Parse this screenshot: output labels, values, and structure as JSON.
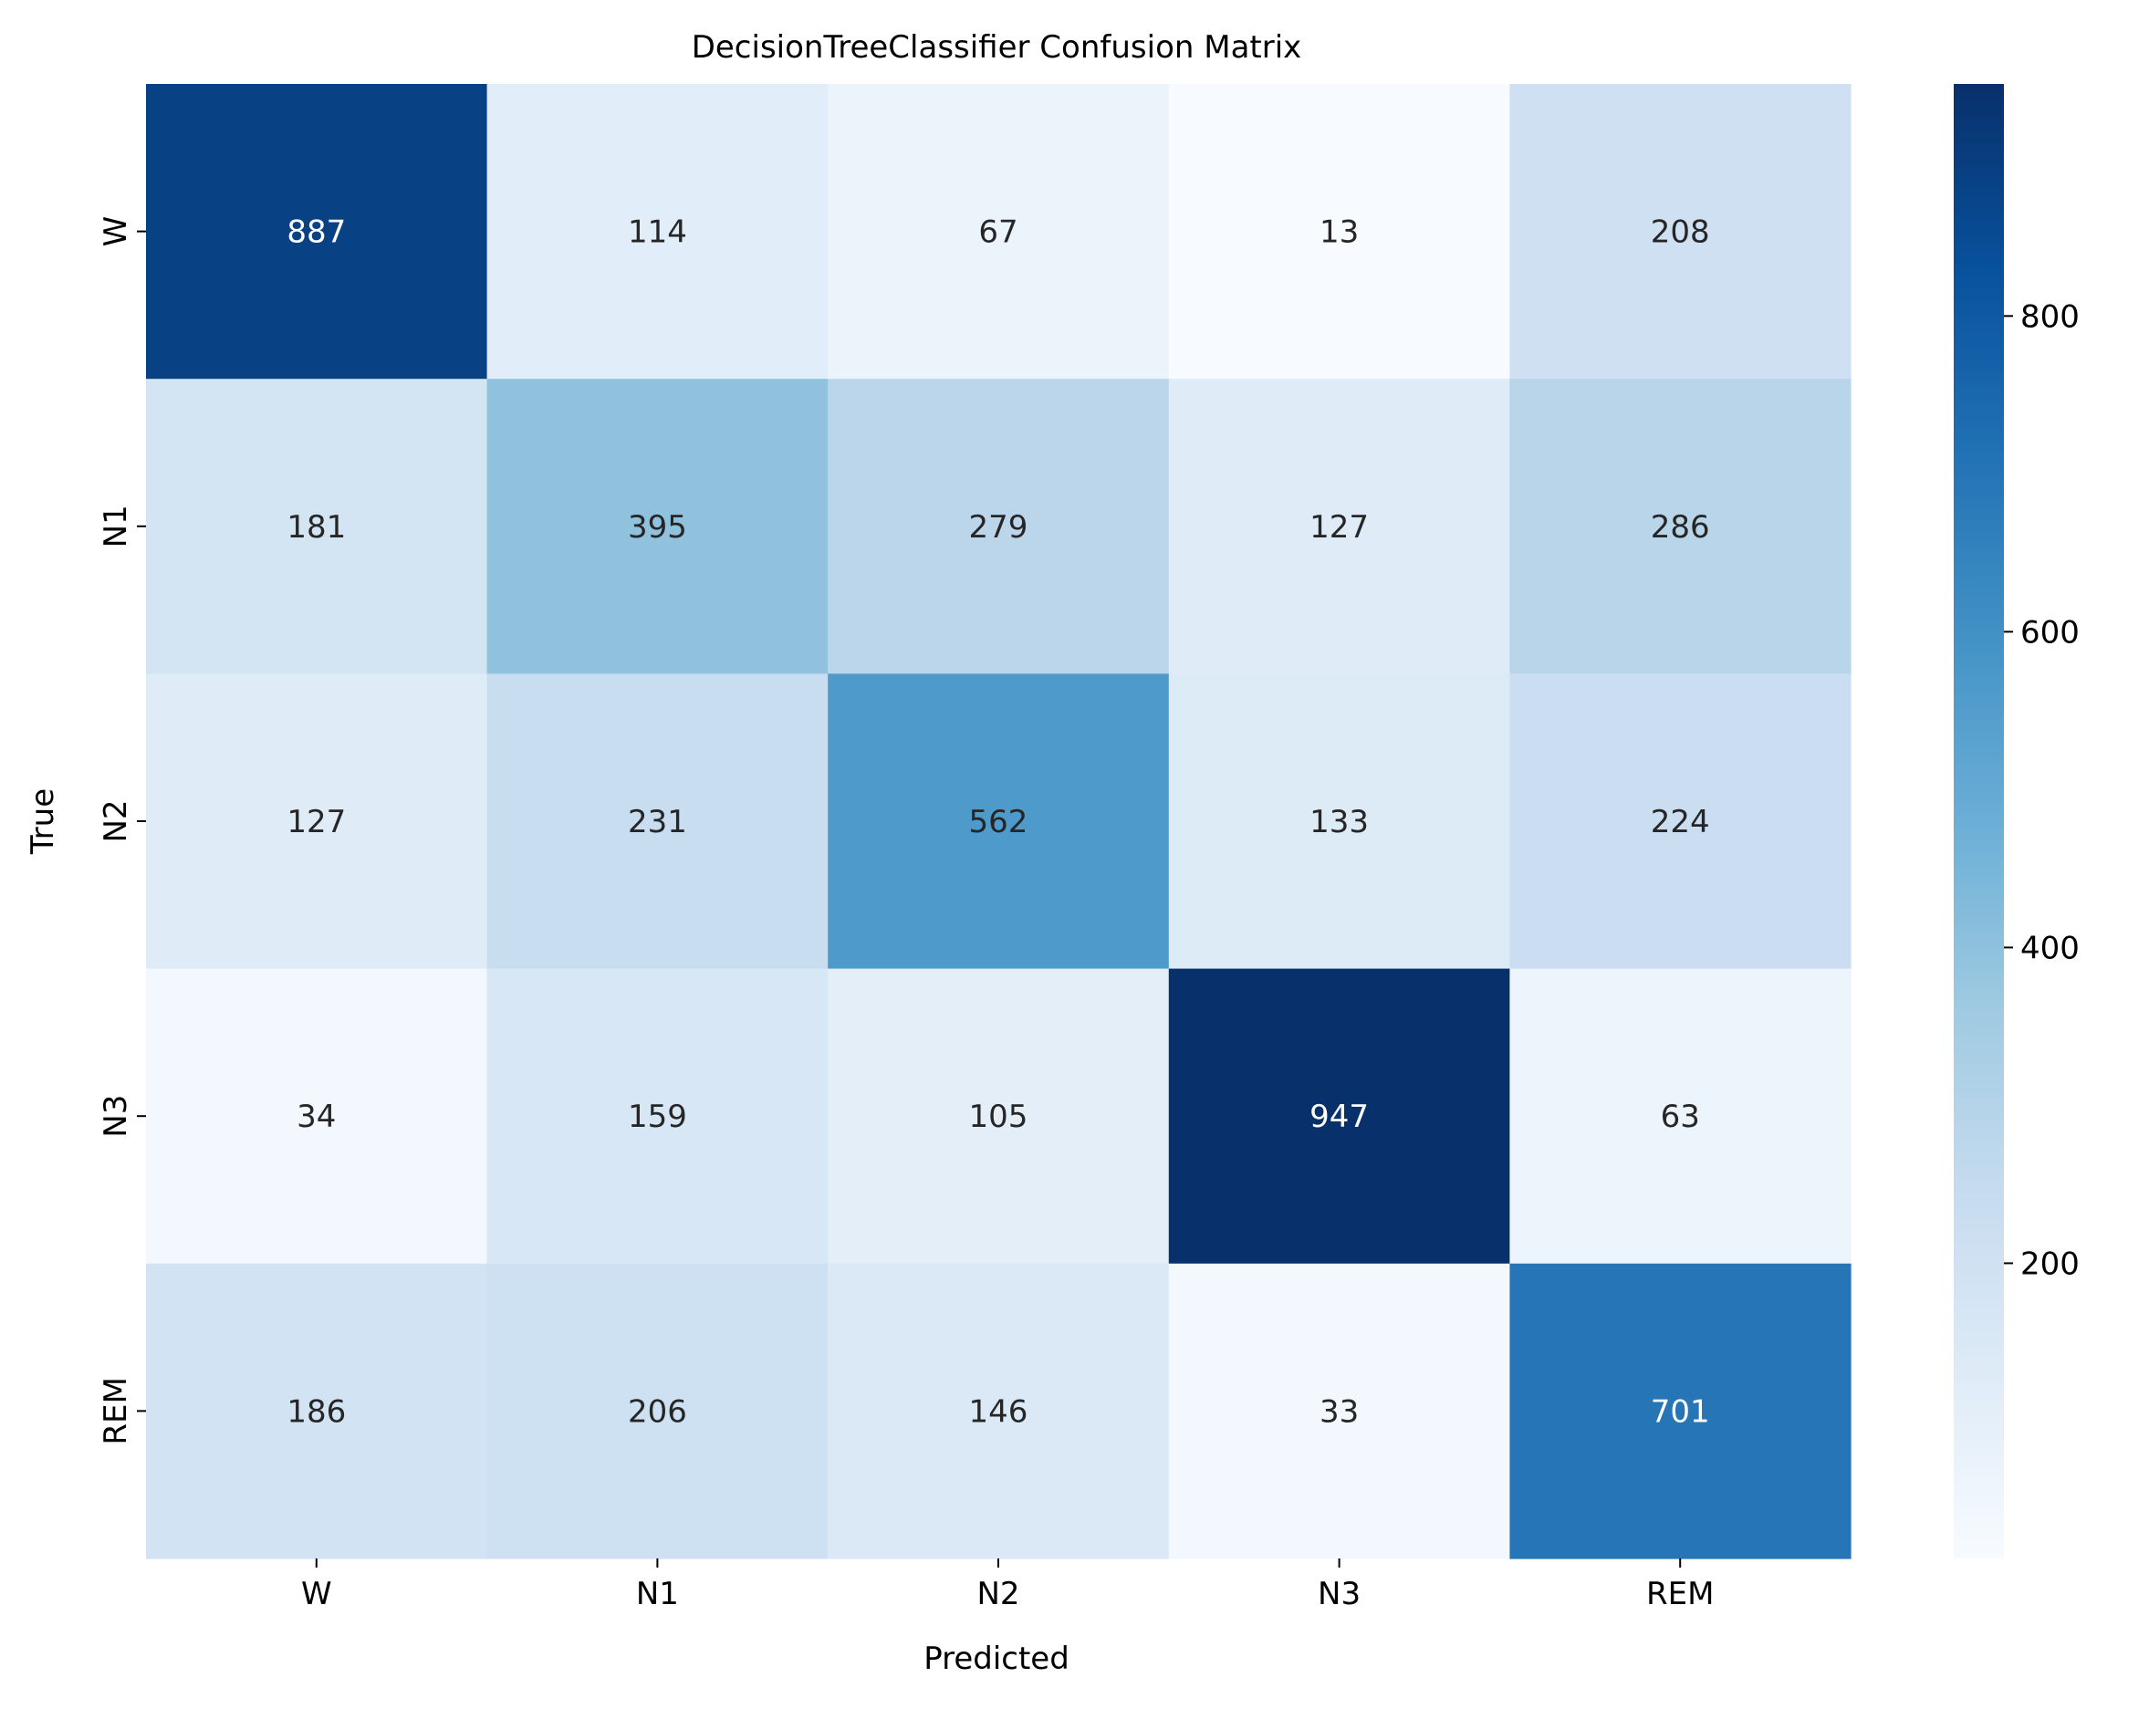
{
  "chart_data": {
    "type": "heatmap",
    "title": "DecisionTreeClassifier Confusion Matrix",
    "xlabel": "Predicted",
    "ylabel": "True",
    "x_categories": [
      "W",
      "N1",
      "N2",
      "N3",
      "REM"
    ],
    "y_categories": [
      "W",
      "N1",
      "N2",
      "N3",
      "REM"
    ],
    "values": [
      [
        887,
        114,
        67,
        13,
        208
      ],
      [
        181,
        395,
        279,
        127,
        286
      ],
      [
        127,
        231,
        562,
        133,
        224
      ],
      [
        34,
        159,
        105,
        947,
        63
      ],
      [
        186,
        206,
        146,
        33,
        701
      ]
    ],
    "colormap": "Blues",
    "color_range": [
      13,
      947
    ],
    "colorbar_ticks": [
      200,
      400,
      600,
      800
    ],
    "grid": false,
    "legend": "colorbar-right"
  }
}
